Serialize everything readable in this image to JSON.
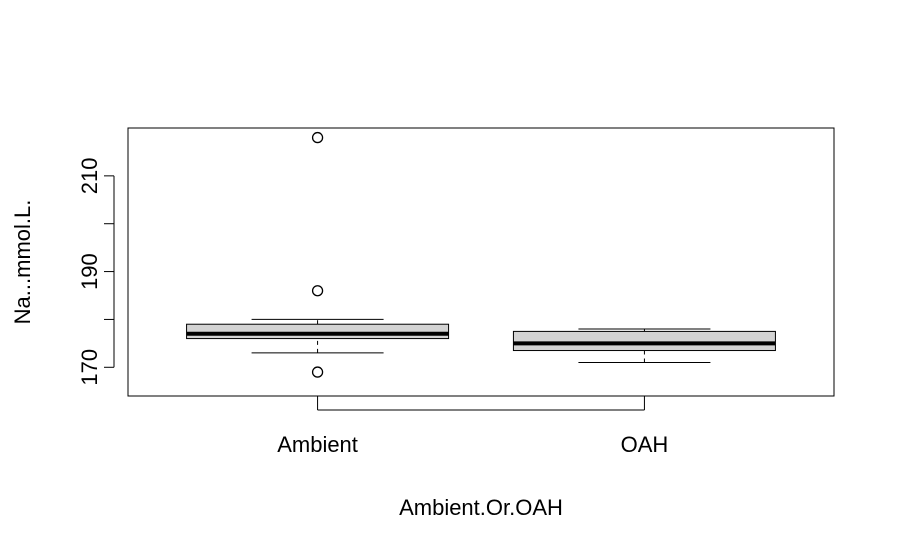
{
  "chart_data": {
    "type": "boxplot",
    "xlabel": "Ambient.Or.OAH",
    "ylabel": "Na...mmol.L.",
    "ylim": [
      164,
      220
    ],
    "yticks": [
      170,
      180,
      190,
      200,
      210
    ],
    "ytick_labels": [
      "170",
      "",
      "190",
      "",
      "210"
    ],
    "categories": [
      "Ambient",
      "OAH"
    ],
    "boxes": [
      {
        "category": "Ambient",
        "whisker_low": 173,
        "q1": 176,
        "median": 177,
        "q3": 179,
        "whisker_high": 180,
        "outliers": [
          218,
          186,
          169
        ]
      },
      {
        "category": "OAH",
        "whisker_low": 171,
        "q1": 173.5,
        "median": 175,
        "q3": 177.5,
        "whisker_high": 178,
        "outliers": []
      }
    ],
    "box_fill": "#d3d3d3",
    "grid": false,
    "legend": "none"
  }
}
